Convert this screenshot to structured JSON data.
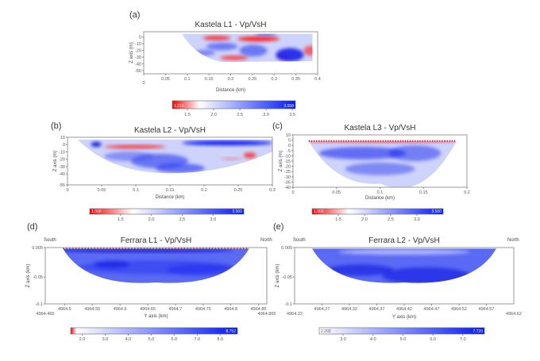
{
  "chart_data": [
    {
      "type": "heatmap",
      "panel_label": "(a)",
      "title": "Kastela L1 - Vp/VsH",
      "xlabel": "Distance (km)",
      "ylabel": "Z axis (m)",
      "xlim": [
        0,
        0.4
      ],
      "ylim": [
        -55,
        8
      ],
      "xticks": [
        "0",
        "0.05",
        "0.1",
        "0.15",
        "0.2",
        "0.25",
        "0.3",
        "0.35",
        "0.4"
      ],
      "xtick_values": [
        0,
        0.05,
        0.1,
        0.15,
        0.2,
        0.25,
        0.3,
        0.35,
        0.4
      ],
      "yticks": [
        "0",
        "-10",
        "-20",
        "-30",
        "-40",
        "-50"
      ],
      "ytick_values": [
        0,
        -10,
        -20,
        -30,
        -40,
        -50
      ],
      "colorbar": {
        "min_label": "1.213",
        "max_label": "3.558",
        "range": [
          1.213,
          3.558
        ],
        "ticks": [
          "1.5",
          "2.0",
          "2.5",
          "3.0",
          "3.5"
        ],
        "tick_values": [
          1.5,
          2.0,
          2.5,
          3.0,
          3.5
        ],
        "colors": [
          "#ff0000",
          "#ffffff",
          "#0018ff"
        ]
      }
    },
    {
      "type": "heatmap",
      "panel_label": "(b)",
      "title": "Kastela L2 - Vp/VsH",
      "xlabel": "Distance (km)",
      "ylabel": "Z axis (m)",
      "xlim": [
        0,
        0.3
      ],
      "ylim": [
        -55,
        10
      ],
      "xticks": [
        "0",
        "0.05",
        "0.1",
        "0.15",
        "0.2",
        "0.25",
        "0.3"
      ],
      "xtick_values": [
        0,
        0.05,
        0.1,
        0.15,
        0.2,
        0.25,
        0.3
      ],
      "yticks": [
        "10",
        "0",
        "-10",
        "-20",
        "-30",
        "-40",
        "-55"
      ],
      "ytick_values": [
        10,
        0,
        -10,
        -20,
        -30,
        -40,
        -55
      ],
      "colorbar": {
        "min_label": "1.000",
        "max_label": "3.500",
        "range": [
          1.0,
          3.5
        ],
        "ticks": [
          "1.5",
          "2.0",
          "2.5",
          "3.0"
        ],
        "tick_values": [
          1.5,
          2.0,
          2.5,
          3.0
        ],
        "colors": [
          "#ff0000",
          "#ffffff",
          "#0018ff"
        ]
      }
    },
    {
      "type": "heatmap",
      "panel_label": "(c)",
      "title": "Kastela L3 - Vp/VsH",
      "xlabel": "Distance (km)",
      "ylabel": "Z axis (m)",
      "xlim": [
        0,
        0.2
      ],
      "ylim": [
        -40,
        10
      ],
      "xticks": [
        "0",
        "0.05",
        "0.1",
        "0.15",
        "0.2"
      ],
      "xtick_values": [
        0,
        0.05,
        0.1,
        0.15,
        0.2
      ],
      "yticks": [
        "10",
        "5",
        "0",
        "-5",
        "-10",
        "-15",
        "-20",
        "-25",
        "-30",
        "-35",
        "-40"
      ],
      "ytick_values": [
        10,
        5,
        0,
        -5,
        -10,
        -15,
        -20,
        -25,
        -30,
        -35,
        -40
      ],
      "colorbar": {
        "min_label": "1.000",
        "max_label": "3.500",
        "range": [
          1.0,
          3.5
        ],
        "ticks": [
          "1.5",
          "2.0",
          "2.5",
          "3.0"
        ],
        "tick_values": [
          1.5,
          2.0,
          2.5,
          3.0
        ],
        "colors": [
          "#ff0000",
          "#ffffff",
          "#0018ff"
        ]
      }
    },
    {
      "type": "heatmap",
      "panel_label": "(d)",
      "title": "Ferrara L1 - Vp/VsH",
      "left_label": "South",
      "right_label": "North",
      "xlabel": "Y axis (km)",
      "ylabel": "Z axis (km)",
      "xlim": [
        4964.465,
        4964.865
      ],
      "ylim": [
        -0.1,
        0.005
      ],
      "xticks": [
        "4964.5",
        "4964.55",
        "4964.6",
        "4964.65",
        "4964.7",
        "4964.75",
        "4964.8",
        "4964.85"
      ],
      "xtick_values": [
        4964.5,
        4964.55,
        4964.6,
        4964.65,
        4964.7,
        4964.75,
        4964.8,
        4964.85
      ],
      "x_end_labels": [
        "4964.465",
        "4964.865"
      ],
      "yticks": [
        "0.005",
        "-0.05",
        "-0.1"
      ],
      "ytick_values": [
        0.005,
        -0.05,
        -0.1
      ],
      "colorbar": {
        "min_label": "",
        "max_label": "8.752",
        "range": [
          1.5,
          8.752
        ],
        "ticks": [
          "2.0",
          "3.0",
          "4.0",
          "5.0",
          "6.0",
          "7.0",
          "8.0"
        ],
        "tick_values": [
          2,
          3,
          4,
          5,
          6,
          7,
          8
        ],
        "colors": [
          "#ff0000",
          "#ffffff",
          "#0018ff"
        ]
      }
    },
    {
      "type": "heatmap",
      "panel_label": "(e)",
      "title": "Ferrara L2 - Vp/VsH",
      "left_label": "South",
      "right_label": "North",
      "xlabel": "Y axis (km)",
      "ylabel": "Z axis (km)",
      "xlim": [
        4964.22,
        4964.62
      ],
      "ylim": [
        -0.1,
        0.005
      ],
      "xticks": [
        "4964.27",
        "4964.32",
        "4964.37",
        "4964.42",
        "4964.47",
        "4964.52",
        "4964.57"
      ],
      "xtick_values": [
        4964.27,
        4964.32,
        4964.37,
        4964.42,
        4964.47,
        4964.52,
        4964.57
      ],
      "x_end_labels": [
        "4964.22",
        "4964.62"
      ],
      "yticks": [
        "0.005",
        "-0.05",
        "-0.1"
      ],
      "ytick_values": [
        0.005,
        -0.05,
        -0.1
      ],
      "colorbar": {
        "min_label": "2.203",
        "max_label": "7.720",
        "range": [
          2.203,
          7.72
        ],
        "ticks": [
          "3.0",
          "4.0",
          "5.0",
          "6.0",
          "7.0"
        ],
        "tick_values": [
          3,
          4,
          5,
          6,
          7
        ],
        "colors": [
          "#ffffff",
          "#0018ff"
        ]
      }
    }
  ]
}
